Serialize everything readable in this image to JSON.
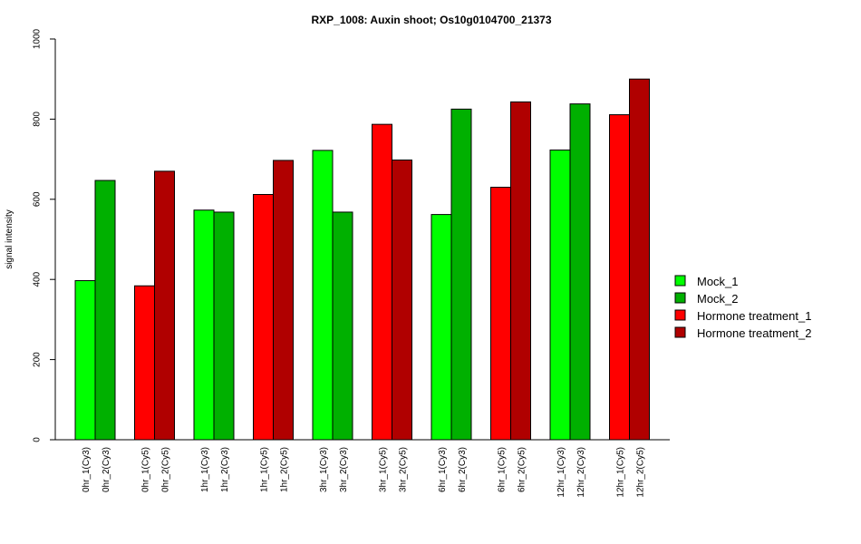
{
  "chart_data": {
    "type": "bar",
    "title": "RXP_1008: Auxin shoot; Os10g0104700_21373",
    "xlabel": "",
    "ylabel": "signal intensity",
    "ylim": [
      0,
      1000
    ],
    "yticks": [
      0,
      200,
      400,
      600,
      800,
      1000
    ],
    "grid": false,
    "legend_position": "right",
    "series_colors": {
      "Mock_1": "#00ff00",
      "Mock_2": "#00b000",
      "Hormone treatment_1": "#ff0000",
      "Hormone treatment_2": "#b00000"
    },
    "legend": [
      "Mock_1",
      "Mock_2",
      "Hormone treatment_1",
      "Hormone treatment_2"
    ],
    "bars": [
      {
        "label": "0hr_1(Cy3)",
        "value": 397,
        "series": "Mock_1"
      },
      {
        "label": "0hr_2(Cy3)",
        "value": 647,
        "series": "Mock_2"
      },
      {
        "label": "0hr_1(Cy5)",
        "value": 384,
        "series": "Hormone treatment_1"
      },
      {
        "label": "0hr_2(Cy5)",
        "value": 670,
        "series": "Hormone treatment_2"
      },
      {
        "label": "1hr_1(Cy3)",
        "value": 573,
        "series": "Mock_1"
      },
      {
        "label": "1hr_2(Cy3)",
        "value": 568,
        "series": "Mock_2"
      },
      {
        "label": "1hr_1(Cy5)",
        "value": 612,
        "series": "Hormone treatment_1"
      },
      {
        "label": "1hr_2(Cy5)",
        "value": 697,
        "series": "Hormone treatment_2"
      },
      {
        "label": "3hr_1(Cy3)",
        "value": 722,
        "series": "Mock_1"
      },
      {
        "label": "3hr_2(Cy3)",
        "value": 568,
        "series": "Mock_2"
      },
      {
        "label": "3hr_1(Cy5)",
        "value": 787,
        "series": "Hormone treatment_1"
      },
      {
        "label": "3hr_2(Cy5)",
        "value": 698,
        "series": "Hormone treatment_2"
      },
      {
        "label": "6hr_1(Cy3)",
        "value": 562,
        "series": "Mock_1"
      },
      {
        "label": "6hr_2(Cy3)",
        "value": 825,
        "series": "Mock_2"
      },
      {
        "label": "6hr_1(Cy5)",
        "value": 630,
        "series": "Hormone treatment_1"
      },
      {
        "label": "6hr_2(Cy5)",
        "value": 843,
        "series": "Hormone treatment_2"
      },
      {
        "label": "12hr_1(Cy3)",
        "value": 723,
        "series": "Mock_1"
      },
      {
        "label": "12hr_2(Cy3)",
        "value": 838,
        "series": "Mock_2"
      },
      {
        "label": "12hr_1(Cy5)",
        "value": 811,
        "series": "Hormone treatment_1"
      },
      {
        "label": "12hr_2(Cy5)",
        "value": 900,
        "series": "Hormone treatment_2"
      }
    ]
  }
}
